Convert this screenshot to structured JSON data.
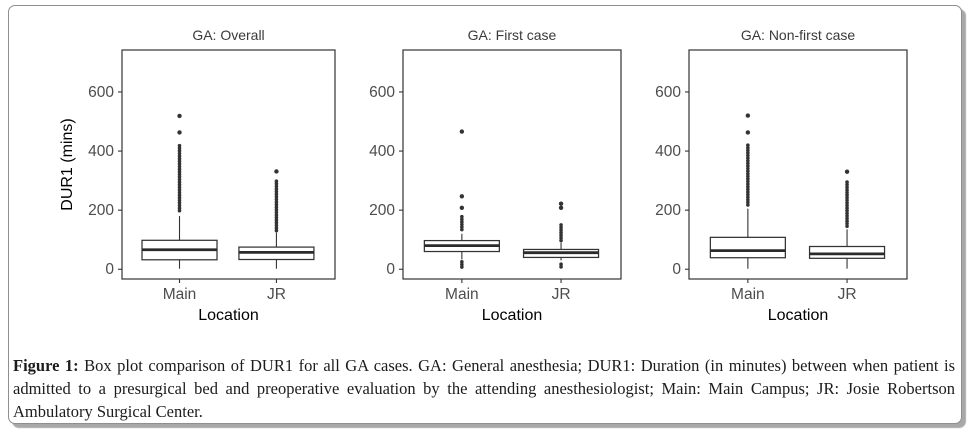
{
  "figure": {
    "caption_label": "Figure 1:",
    "caption_text": "Box plot comparison of DUR1 for all GA cases. GA: General anesthesia; DUR1: Duration (in minutes) between when patient is admitted to a presurgical bed and preoperative evaluation by the attending anesthesiologist; Main: Main Campus; JR: Josie Robertson Ambulatory Surgical Center."
  },
  "chart_data": {
    "type": "boxplot",
    "xlabel": "Location",
    "ylabel": "DUR1 (mins)",
    "categories": [
      "Main",
      "JR"
    ],
    "yticks": [
      0,
      200,
      400,
      600
    ],
    "ylim": [
      -33,
      742
    ],
    "grid": false,
    "panels": [
      {
        "title": "GA: Overall",
        "show_ylabel": true,
        "boxes": [
          {
            "category": "Main",
            "whisker_low": 2,
            "q1": 32,
            "median": 66,
            "q3": 98,
            "whisker_high": 180,
            "outlier_runs": [
              [
                195,
                418
              ]
            ],
            "outlier_points": [
              463,
              519
            ]
          },
          {
            "category": "JR",
            "whisker_low": 2,
            "q1": 33,
            "median": 57,
            "q3": 75,
            "whisker_high": 124,
            "outlier_runs": [
              [
                130,
                298
              ]
            ],
            "outlier_points": [
              331
            ]
          }
        ]
      },
      {
        "title": "GA: First case",
        "show_ylabel": false,
        "boxes": [
          {
            "category": "Main",
            "whisker_low": 33,
            "q1": 60,
            "median": 80,
            "q3": 97,
            "whisker_high": 120,
            "outlier_runs": [
              [
                2,
                25
              ],
              [
                130,
                178
              ]
            ],
            "outlier_points": [
              208,
              247,
              466
            ]
          },
          {
            "category": "JR",
            "whisker_low": 30,
            "q1": 40,
            "median": 56,
            "q3": 67,
            "whisker_high": 90,
            "outlier_runs": [
              [
                2,
                17
              ],
              [
                95,
                150
              ]
            ],
            "outlier_points": [
              208,
              222
            ]
          }
        ]
      },
      {
        "title": "GA: Non-first case",
        "show_ylabel": false,
        "boxes": [
          {
            "category": "Main",
            "whisker_low": 2,
            "q1": 39,
            "median": 63,
            "q3": 108,
            "whisker_high": 205,
            "outlier_runs": [
              [
                215,
                420
              ]
            ],
            "outlier_points": [
              463,
              520
            ]
          },
          {
            "category": "JR",
            "whisker_low": 2,
            "q1": 37,
            "median": 52,
            "q3": 77,
            "whisker_high": 135,
            "outlier_runs": [
              [
                143,
                295
              ]
            ],
            "outlier_points": [
              330
            ]
          }
        ]
      }
    ],
    "colors": {
      "box_stroke": "#333333",
      "box_fill": "#ffffff",
      "median": "#2b2b2b",
      "outlier": "#333333",
      "panel_border": "#333333",
      "tick_label": "#4d4d4d",
      "panel_title": "#3a3a3a",
      "axis_title": "#000000"
    }
  }
}
